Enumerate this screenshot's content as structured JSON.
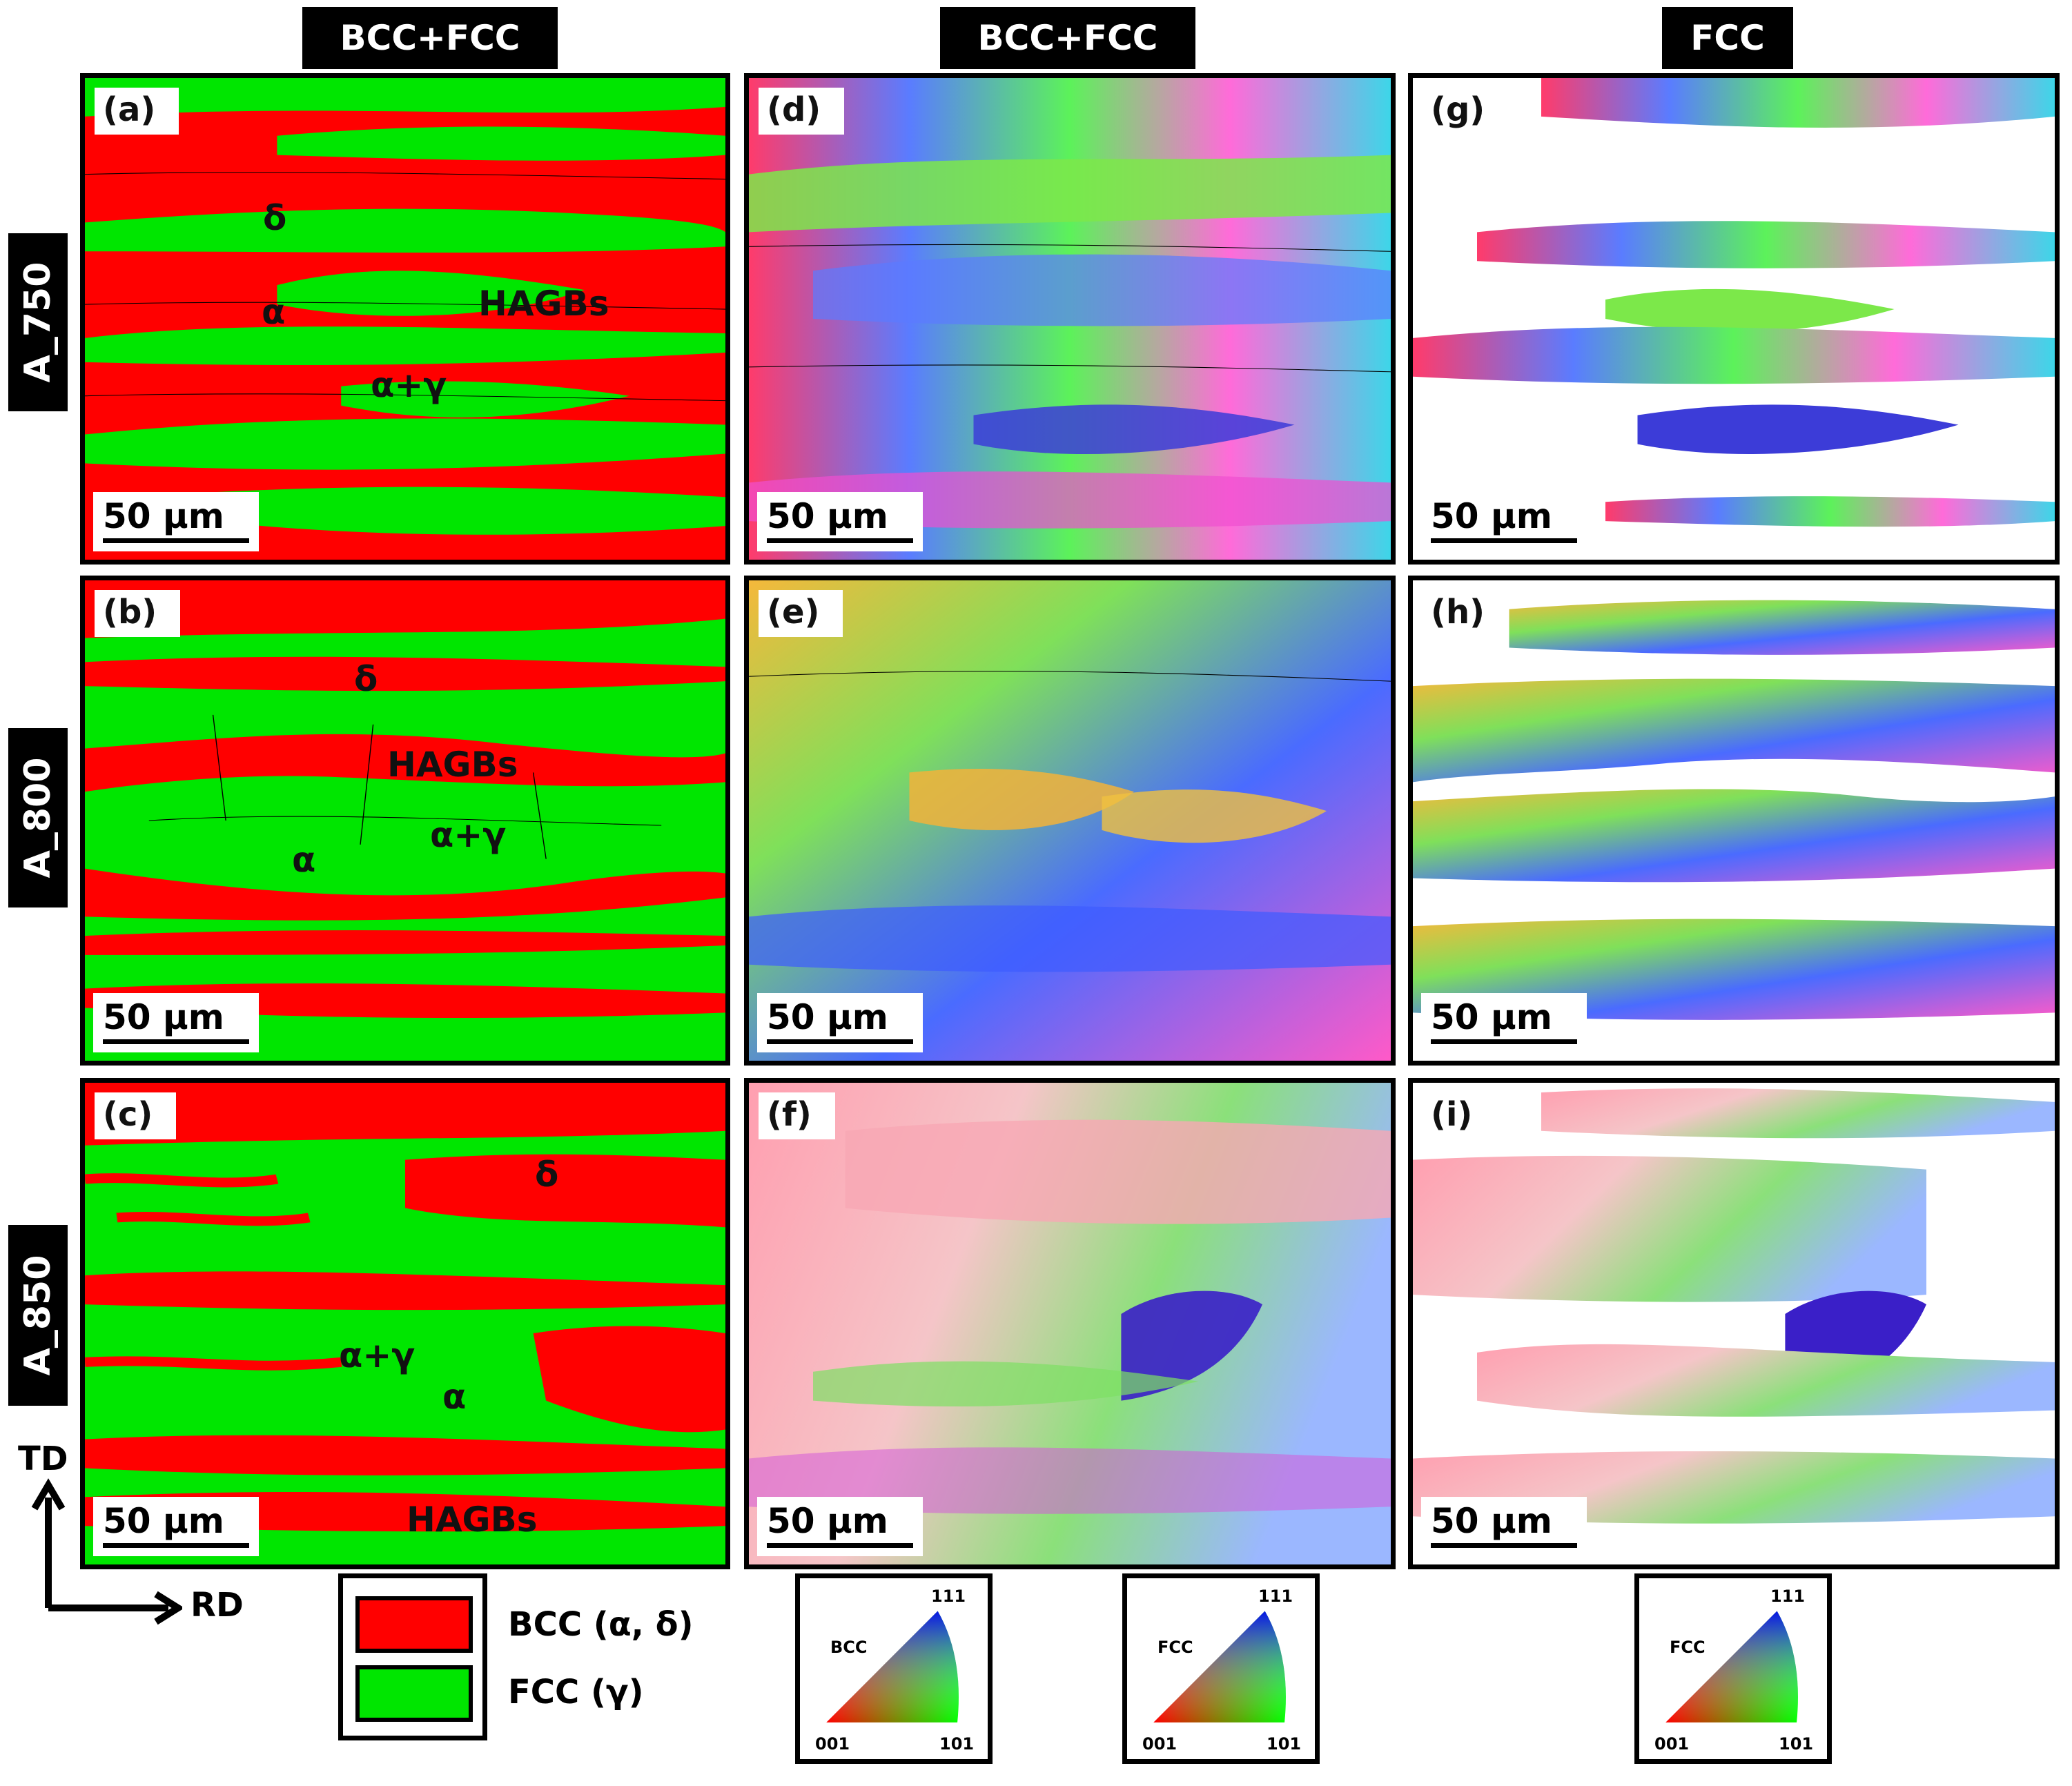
{
  "column_headers": [
    "BCC+FCC",
    "BCC+FCC",
    "FCC"
  ],
  "row_labels": [
    "A_750",
    "A_800",
    "A_850"
  ],
  "panels": {
    "a": "(a)",
    "b": "(b)",
    "c": "(c)",
    "d": "(d)",
    "e": "(e)",
    "f": "(f)",
    "g": "(g)",
    "h": "(h)",
    "i": "(i)"
  },
  "scale_bar": "50 μm",
  "annotations": {
    "delta": "δ",
    "alpha": "α",
    "alpha_gamma": "α+γ",
    "hagbs": "HAGBs"
  },
  "legend": {
    "bcc": "BCC (α, δ)",
    "fcc": "FCC (γ)",
    "bcc_color": "#ff0000",
    "fcc_color": "#00e600"
  },
  "ipf_keys": [
    {
      "phase": "BCC",
      "top": "111",
      "left": "001",
      "right": "101"
    },
    {
      "phase": "FCC",
      "top": "111",
      "left": "001",
      "right": "101"
    },
    {
      "phase": "FCC",
      "top": "111",
      "left": "001",
      "right": "101"
    }
  ],
  "axes": {
    "td": "TD",
    "rd": "RD"
  }
}
